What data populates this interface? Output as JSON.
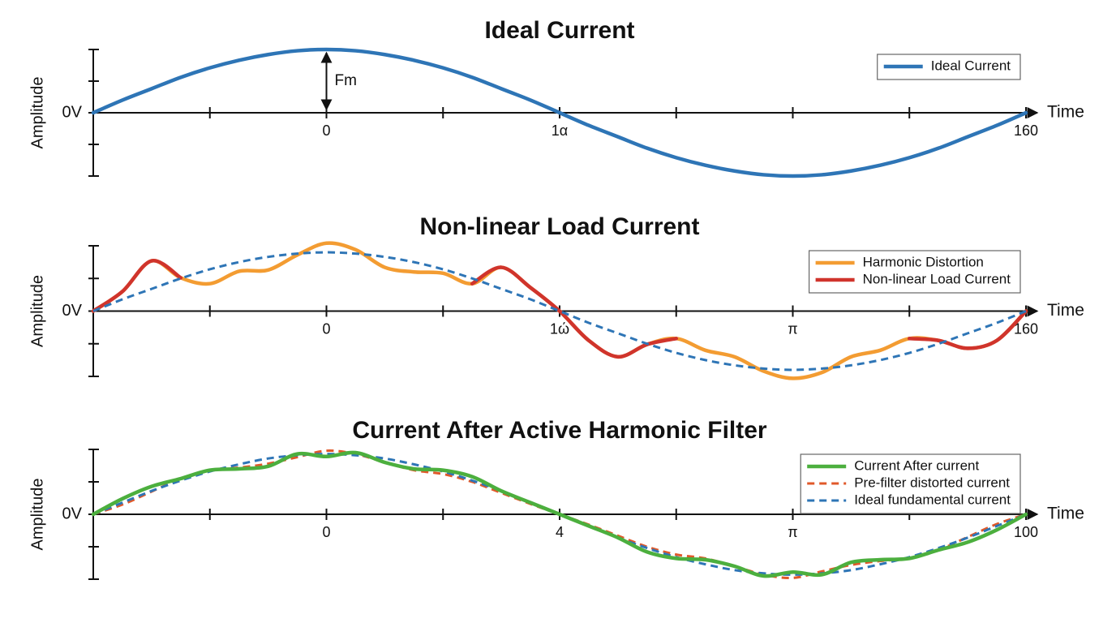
{
  "chart_data": [
    {
      "type": "line",
      "title": "Ideal Current",
      "ylabel": "Amplitude",
      "xlabel": "Time",
      "x": [
        0,
        0.25,
        0.5,
        0.75,
        1,
        1.25,
        1.5,
        1.75,
        2,
        2.25,
        2.5,
        2.75,
        3,
        3.25,
        3.5,
        3.75,
        4,
        4.25,
        4.5,
        4.75,
        5,
        5.25,
        5.5,
        5.75,
        6,
        6.25,
        6.5,
        6.75,
        7,
        7.25,
        7.5,
        7.75,
        8
      ],
      "xlim": [
        0,
        8
      ],
      "xticks": [
        {
          "value": 0,
          "label": null
        },
        {
          "value": 1,
          "label": null
        },
        {
          "value": 2,
          "label": "0"
        },
        {
          "value": 3,
          "label": null
        },
        {
          "value": 4,
          "label": "1α"
        },
        {
          "value": 5,
          "label": null
        },
        {
          "value": 6,
          "label": null
        },
        {
          "value": 7,
          "label": null
        },
        {
          "value": 8,
          "label": "160"
        }
      ],
      "ylim": [
        -1,
        1
      ],
      "yticks": [
        {
          "value": 1,
          "label": null
        },
        {
          "value": 0.5,
          "label": null
        },
        {
          "value": 0,
          "label": "0V"
        },
        {
          "value": -0.5,
          "label": null
        },
        {
          "value": -1,
          "label": null
        }
      ],
      "annotation": {
        "text": "Fm",
        "value": 1
      },
      "legend": "upper right",
      "series": [
        {
          "name": "Ideal Current",
          "color": "#2e75b6",
          "dashed": false,
          "values": [
            0,
            0.2,
            0.38,
            0.56,
            0.71,
            0.83,
            0.92,
            0.98,
            1,
            0.98,
            0.92,
            0.83,
            0.71,
            0.56,
            0.38,
            0.2,
            0,
            -0.2,
            -0.38,
            -0.56,
            -0.71,
            -0.83,
            -0.92,
            -0.98,
            -1,
            -0.98,
            -0.92,
            -0.83,
            -0.71,
            -0.56,
            -0.38,
            -0.2,
            0
          ]
        }
      ]
    },
    {
      "type": "line",
      "title": "Non-linear Load Current",
      "ylabel": "Amplitude",
      "xlabel": "Time",
      "x": [
        0,
        0.25,
        0.5,
        0.75,
        1,
        1.25,
        1.5,
        1.75,
        2,
        2.25,
        2.5,
        2.75,
        3,
        3.25,
        3.5,
        3.75,
        4,
        4.25,
        4.5,
        4.75,
        5,
        5.25,
        5.5,
        5.75,
        6,
        6.25,
        6.5,
        6.75,
        7,
        7.25,
        7.5,
        7.75,
        8
      ],
      "xlim": [
        0,
        8
      ],
      "xticks": [
        {
          "value": 0,
          "label": null
        },
        {
          "value": 1,
          "label": null
        },
        {
          "value": 2,
          "label": "0"
        },
        {
          "value": 3,
          "label": null
        },
        {
          "value": 4,
          "label": "1ώ"
        },
        {
          "value": 5,
          "label": null
        },
        {
          "value": 6,
          "label": "π"
        },
        {
          "value": 7,
          "label": null
        },
        {
          "value": 8,
          "label": "160"
        }
      ],
      "ylim": [
        -1,
        1
      ],
      "yticks": [
        {
          "value": 1,
          "label": null
        },
        {
          "value": 0.5,
          "label": null
        },
        {
          "value": 0,
          "label": "0V"
        },
        {
          "value": -0.5,
          "label": null
        },
        {
          "value": -1,
          "label": null
        }
      ],
      "legend": "upper right",
      "series": [
        {
          "name": "Harmonic Distortion",
          "color": "#f39c32",
          "dashed": false,
          "values": [
            0,
            0.3,
            0.77,
            0.51,
            0.42,
            0.61,
            0.63,
            0.86,
            1.04,
            0.94,
            0.67,
            0.6,
            0.58,
            0.42,
            0.67,
            0.36,
            0,
            -0.45,
            -0.7,
            -0.51,
            -0.42,
            -0.6,
            -0.7,
            -0.92,
            -1.03,
            -0.94,
            -0.7,
            -0.6,
            -0.42,
            -0.45,
            -0.57,
            -0.45,
            0
          ]
        },
        {
          "name": "Non-linear Load Current",
          "color": "#d0342c",
          "dashed": false,
          "values": [
            0,
            0.3,
            0.77,
            0.51,
            null,
            null,
            null,
            null,
            null,
            null,
            null,
            null,
            null,
            0.42,
            0.67,
            0.36,
            0,
            -0.45,
            -0.7,
            -0.51,
            -0.42,
            null,
            null,
            null,
            null,
            null,
            null,
            null,
            -0.42,
            -0.45,
            -0.57,
            -0.45,
            0
          ]
        },
        {
          "name": null,
          "color": "#2e75b6",
          "dashed": true,
          "values": [
            0,
            0.18,
            0.34,
            0.5,
            0.64,
            0.75,
            0.83,
            0.88,
            0.9,
            0.88,
            0.83,
            0.75,
            0.64,
            0.5,
            0.34,
            0.18,
            0,
            -0.18,
            -0.34,
            -0.5,
            -0.64,
            -0.75,
            -0.83,
            -0.88,
            -0.9,
            -0.88,
            -0.83,
            -0.75,
            -0.64,
            -0.5,
            -0.34,
            -0.18,
            0
          ]
        }
      ]
    },
    {
      "type": "line",
      "title": "Current After Active Harmonic Filter",
      "ylabel": "Amplitude",
      "xlabel": "Time",
      "x": [
        0,
        0.25,
        0.5,
        0.75,
        1,
        1.25,
        1.5,
        1.75,
        2,
        2.25,
        2.5,
        2.75,
        3,
        3.25,
        3.5,
        3.75,
        4,
        4.25,
        4.5,
        4.75,
        5,
        5.25,
        5.5,
        5.75,
        6,
        6.25,
        6.5,
        6.75,
        7,
        7.25,
        7.5,
        7.75,
        8
      ],
      "xlim": [
        0,
        8
      ],
      "xticks": [
        {
          "value": 0,
          "label": null
        },
        {
          "value": 1,
          "label": null
        },
        {
          "value": 2,
          "label": "0"
        },
        {
          "value": 3,
          "label": null
        },
        4,
        {
          "value": 5,
          "label": null
        },
        {
          "value": 6,
          "label": "π"
        },
        {
          "value": 7,
          "label": null
        },
        {
          "value": 8,
          "label": "100"
        }
      ],
      "ylim": [
        -1,
        1
      ],
      "yticks": [
        {
          "value": 1,
          "label": null
        },
        {
          "value": 0.5,
          "label": null
        },
        {
          "value": 0,
          "label": "0V"
        },
        {
          "value": -0.5,
          "label": null
        },
        {
          "value": -1,
          "label": null
        }
      ],
      "legend": "upper right",
      "series": [
        {
          "name": "Pre-filter distorted current",
          "color": "#e0592a",
          "dashed": true,
          "values": [
            0,
            0.15,
            0.35,
            0.55,
            0.68,
            0.72,
            0.78,
            0.88,
            0.98,
            0.93,
            0.8,
            0.68,
            0.62,
            0.5,
            0.33,
            0.16,
            0,
            -0.16,
            -0.33,
            -0.5,
            -0.62,
            -0.68,
            -0.8,
            -0.93,
            -0.98,
            -0.88,
            -0.78,
            -0.72,
            -0.68,
            -0.55,
            -0.35,
            -0.15,
            0
          ]
        },
        {
          "name": "Ideal fundamental current",
          "color": "#2e75b6",
          "dashed": true,
          "values": [
            0,
            0.18,
            0.36,
            0.52,
            0.66,
            0.77,
            0.86,
            0.91,
            0.93,
            0.91,
            0.86,
            0.77,
            0.66,
            0.52,
            0.36,
            0.18,
            0,
            -0.18,
            -0.36,
            -0.52,
            -0.66,
            -0.77,
            -0.86,
            -0.91,
            -0.93,
            -0.91,
            -0.86,
            -0.77,
            -0.66,
            -0.52,
            -0.36,
            -0.18,
            0
          ]
        },
        {
          "name": "Current After current",
          "color": "#4caf3e",
          "dashed": false,
          "values": [
            0,
            0.24,
            0.43,
            0.55,
            0.68,
            0.7,
            0.74,
            0.93,
            0.89,
            0.95,
            0.8,
            0.7,
            0.68,
            0.58,
            0.36,
            0.18,
            0,
            -0.18,
            -0.36,
            -0.58,
            -0.68,
            -0.7,
            -0.8,
            -0.95,
            -0.89,
            -0.93,
            -0.74,
            -0.7,
            -0.68,
            -0.55,
            -0.43,
            -0.24,
            0
          ]
        }
      ]
    }
  ]
}
